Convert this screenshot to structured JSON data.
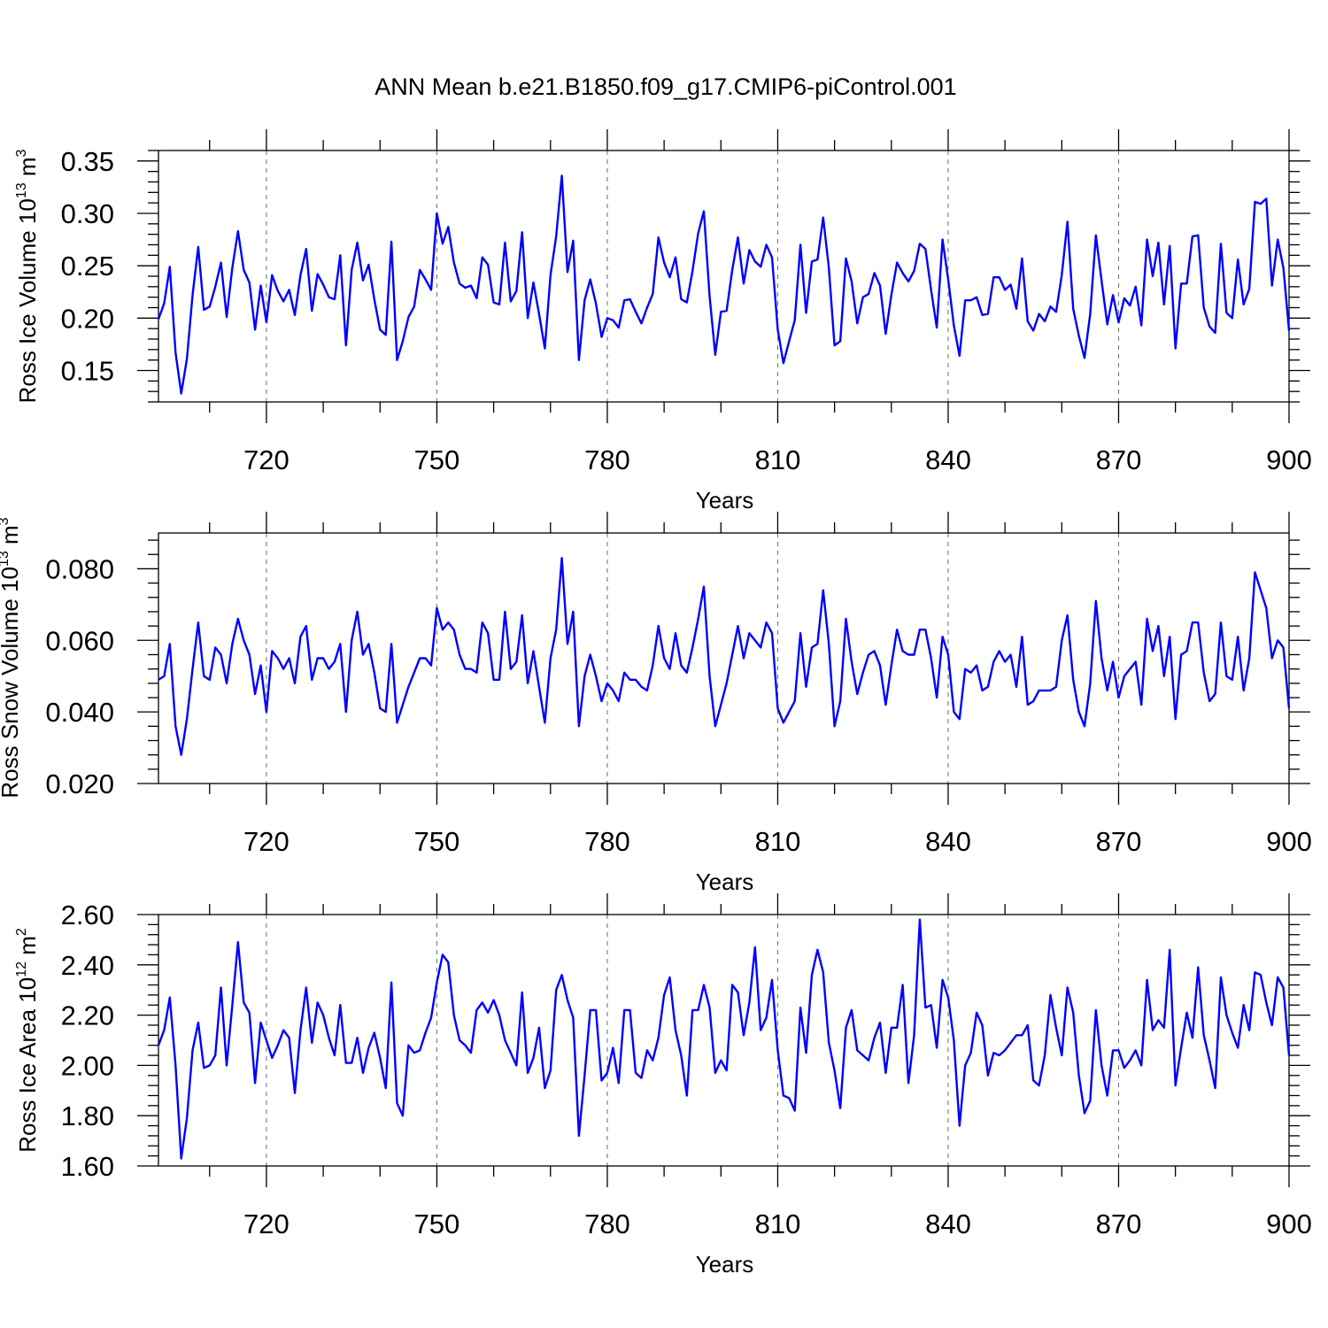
{
  "figure": {
    "title": "ANN Mean b.e21.B1850.f09_g17.CMIP6-piControl.001"
  },
  "chart_data": [
    {
      "type": "line",
      "ylabel_main": "Ross Ice Volume 10",
      "ylabel_exp": "13",
      "ylabel_unit": " m",
      "ylabel_unit_exp": "3",
      "xlabel": "Years",
      "xlim": [
        701,
        900
      ],
      "ylim": [
        0.12,
        0.36
      ],
      "xticks": [
        720,
        750,
        780,
        810,
        840,
        870,
        900
      ],
      "xtick_labels": [
        "720",
        "750",
        "780",
        "810",
        "840",
        "870",
        "900"
      ],
      "yticks": [
        0.15,
        0.2,
        0.25,
        0.3,
        0.35
      ],
      "ytick_labels": [
        "0.15",
        "0.20",
        "0.25",
        "0.30",
        "0.35"
      ],
      "grid": "vertical dashed at major x ticks",
      "line_color": "#0000ff",
      "series": [
        {
          "x_start": 701,
          "values": [
            0.199,
            0.214,
            0.249,
            0.167,
            0.128,
            0.161,
            0.222,
            0.268,
            0.208,
            0.211,
            0.23,
            0.253,
            0.201,
            0.248,
            0.283,
            0.246,
            0.234,
            0.189,
            0.231,
            0.196,
            0.241,
            0.226,
            0.216,
            0.227,
            0.203,
            0.241,
            0.266,
            0.207,
            0.242,
            0.232,
            0.22,
            0.218,
            0.26,
            0.174,
            0.246,
            0.272,
            0.236,
            0.251,
            0.218,
            0.189,
            0.184,
            0.273,
            0.16,
            0.178,
            0.201,
            0.211,
            0.246,
            0.237,
            0.227,
            0.3,
            0.271,
            0.287,
            0.253,
            0.233,
            0.229,
            0.231,
            0.219,
            0.258,
            0.251,
            0.215,
            0.213,
            0.272,
            0.216,
            0.226,
            0.282,
            0.2,
            0.234,
            0.204,
            0.171,
            0.241,
            0.278,
            0.336,
            0.244,
            0.274,
            0.16,
            0.217,
            0.237,
            0.214,
            0.182,
            0.2,
            0.198,
            0.191,
            0.217,
            0.218,
            0.206,
            0.195,
            0.21,
            0.223,
            0.277,
            0.253,
            0.239,
            0.258,
            0.218,
            0.215,
            0.245,
            0.281,
            0.302,
            0.221,
            0.165,
            0.206,
            0.207,
            0.246,
            0.277,
            0.233,
            0.265,
            0.254,
            0.249,
            0.27,
            0.258,
            0.189,
            0.157,
            0.178,
            0.198,
            0.27,
            0.205,
            0.254,
            0.256,
            0.296,
            0.248,
            0.174,
            0.178,
            0.257,
            0.235,
            0.195,
            0.22,
            0.223,
            0.243,
            0.231,
            0.185,
            0.222,
            0.253,
            0.243,
            0.235,
            0.245,
            0.271,
            0.266,
            0.227,
            0.191,
            0.275,
            0.237,
            0.193,
            0.164,
            0.217,
            0.217,
            0.22,
            0.203,
            0.204,
            0.239,
            0.239,
            0.227,
            0.232,
            0.209,
            0.257,
            0.197,
            0.188,
            0.204,
            0.197,
            0.211,
            0.206,
            0.241,
            0.292,
            0.209,
            0.183,
            0.162,
            0.204,
            0.279,
            0.236,
            0.194,
            0.222,
            0.196,
            0.219,
            0.212,
            0.23,
            0.193,
            0.275,
            0.24,
            0.272,
            0.213,
            0.269,
            0.171,
            0.233,
            0.233,
            0.278,
            0.279,
            0.21,
            0.192,
            0.186,
            0.271,
            0.205,
            0.2,
            0.256,
            0.213,
            0.228,
            0.311,
            0.309,
            0.314,
            0.231,
            0.275,
            0.248,
            0.188
          ]
        }
      ]
    },
    {
      "type": "line",
      "ylabel_main": "Ross Snow Volume 10",
      "ylabel_exp": "13",
      "ylabel_unit": " m",
      "ylabel_unit_exp": "3",
      "xlabel": "Years",
      "xlim": [
        701,
        900
      ],
      "ylim": [
        0.02,
        0.09
      ],
      "xticks": [
        720,
        750,
        780,
        810,
        840,
        870,
        900
      ],
      "xtick_labels": [
        "720",
        "750",
        "780",
        "810",
        "840",
        "870",
        "900"
      ],
      "yticks": [
        0.02,
        0.04,
        0.06,
        0.08
      ],
      "ytick_labels": [
        "0.020",
        "0.040",
        "0.060",
        "0.080"
      ],
      "grid": "vertical dashed at major x ticks",
      "line_color": "#0000ff",
      "series": [
        {
          "x_start": 701,
          "values": [
            0.049,
            0.05,
            0.059,
            0.036,
            0.028,
            0.038,
            0.052,
            0.065,
            0.05,
            0.049,
            0.058,
            0.056,
            0.048,
            0.059,
            0.066,
            0.06,
            0.056,
            0.045,
            0.053,
            0.04,
            0.057,
            0.055,
            0.052,
            0.055,
            0.048,
            0.061,
            0.064,
            0.049,
            0.055,
            0.055,
            0.052,
            0.054,
            0.059,
            0.04,
            0.06,
            0.068,
            0.056,
            0.059,
            0.051,
            0.041,
            0.04,
            0.059,
            0.037,
            0.042,
            0.047,
            0.051,
            0.055,
            0.055,
            0.053,
            0.069,
            0.063,
            0.065,
            0.063,
            0.056,
            0.052,
            0.052,
            0.051,
            0.065,
            0.062,
            0.049,
            0.049,
            0.068,
            0.052,
            0.054,
            0.067,
            0.048,
            0.057,
            0.047,
            0.037,
            0.055,
            0.063,
            0.083,
            0.059,
            0.068,
            0.036,
            0.05,
            0.056,
            0.05,
            0.043,
            0.048,
            0.046,
            0.043,
            0.051,
            0.049,
            0.049,
            0.047,
            0.046,
            0.053,
            0.064,
            0.055,
            0.052,
            0.062,
            0.053,
            0.051,
            0.058,
            0.066,
            0.075,
            0.05,
            0.036,
            0.042,
            0.048,
            0.056,
            0.064,
            0.055,
            0.062,
            0.06,
            0.058,
            0.065,
            0.062,
            0.041,
            0.037,
            0.04,
            0.043,
            0.062,
            0.047,
            0.058,
            0.059,
            0.074,
            0.059,
            0.036,
            0.043,
            0.066,
            0.054,
            0.045,
            0.051,
            0.056,
            0.057,
            0.053,
            0.042,
            0.053,
            0.063,
            0.057,
            0.056,
            0.056,
            0.063,
            0.063,
            0.055,
            0.044,
            0.061,
            0.056,
            0.04,
            0.038,
            0.052,
            0.051,
            0.053,
            0.046,
            0.047,
            0.054,
            0.057,
            0.054,
            0.056,
            0.047,
            0.061,
            0.042,
            0.043,
            0.046,
            0.046,
            0.046,
            0.047,
            0.06,
            0.067,
            0.049,
            0.04,
            0.036,
            0.048,
            0.071,
            0.055,
            0.046,
            0.054,
            0.044,
            0.05,
            0.052,
            0.054,
            0.042,
            0.066,
            0.057,
            0.064,
            0.05,
            0.061,
            0.038,
            0.056,
            0.057,
            0.065,
            0.065,
            0.051,
            0.043,
            0.045,
            0.065,
            0.05,
            0.049,
            0.061,
            0.046,
            0.055,
            0.079,
            0.074,
            0.069,
            0.055,
            0.06,
            0.058,
            0.041
          ]
        }
      ]
    },
    {
      "type": "line",
      "ylabel_main": "Ross Ice Area 10",
      "ylabel_exp": "12",
      "ylabel_unit": " m",
      "ylabel_unit_exp": "2",
      "xlabel": "Years",
      "xlim": [
        701,
        900
      ],
      "ylim": [
        1.6,
        2.6
      ],
      "xticks": [
        720,
        750,
        780,
        810,
        840,
        870,
        900
      ],
      "xtick_labels": [
        "720",
        "750",
        "780",
        "810",
        "840",
        "870",
        "900"
      ],
      "yticks": [
        1.6,
        1.8,
        2.0,
        2.2,
        2.4,
        2.6
      ],
      "ytick_labels": [
        "1.60",
        "1.80",
        "2.00",
        "2.20",
        "2.40",
        "2.60"
      ],
      "grid": "vertical dashed at major x ticks",
      "line_color": "#0000ff",
      "series": [
        {
          "x_start": 701,
          "values": [
            2.08,
            2.14,
            2.27,
            2.0,
            1.63,
            1.79,
            2.06,
            2.17,
            1.99,
            2.0,
            2.04,
            2.31,
            2.0,
            2.24,
            2.49,
            2.25,
            2.21,
            1.93,
            2.17,
            2.1,
            2.03,
            2.08,
            2.14,
            2.11,
            1.89,
            2.14,
            2.31,
            2.09,
            2.25,
            2.2,
            2.11,
            2.04,
            2.24,
            2.01,
            2.01,
            2.11,
            1.97,
            2.07,
            2.13,
            2.03,
            1.91,
            2.33,
            1.85,
            1.8,
            2.08,
            2.05,
            2.06,
            2.13,
            2.19,
            2.33,
            2.44,
            2.41,
            2.2,
            2.1,
            2.08,
            2.05,
            2.22,
            2.25,
            2.21,
            2.26,
            2.2,
            2.1,
            2.05,
            2.0,
            2.29,
            1.97,
            2.03,
            2.15,
            1.91,
            1.98,
            2.3,
            2.36,
            2.26,
            2.19,
            1.72,
            1.96,
            2.22,
            2.22,
            1.94,
            1.97,
            2.07,
            1.93,
            2.22,
            2.22,
            1.97,
            1.95,
            2.06,
            2.02,
            2.11,
            2.28,
            2.35,
            2.14,
            2.04,
            1.88,
            2.22,
            2.22,
            2.32,
            2.23,
            1.97,
            2.02,
            1.98,
            2.32,
            2.29,
            2.12,
            2.25,
            2.47,
            2.14,
            2.19,
            2.34,
            2.06,
            1.88,
            1.87,
            1.82,
            2.23,
            2.05,
            2.36,
            2.46,
            2.37,
            2.09,
            1.98,
            1.83,
            2.15,
            2.22,
            2.06,
            2.04,
            2.02,
            2.11,
            2.17,
            1.97,
            2.15,
            2.15,
            2.32,
            1.93,
            2.12,
            2.58,
            2.23,
            2.24,
            2.07,
            2.34,
            2.27,
            2.1,
            1.76,
            2.0,
            2.05,
            2.21,
            2.16,
            1.96,
            2.05,
            2.04,
            2.06,
            2.09,
            2.12,
            2.12,
            2.16,
            1.94,
            1.92,
            2.04,
            2.28,
            2.15,
            2.04,
            2.31,
            2.21,
            1.96,
            1.81,
            1.86,
            2.22,
            2.0,
            1.88,
            2.06,
            2.06,
            1.99,
            2.02,
            2.06,
            2.0,
            2.34,
            2.14,
            2.18,
            2.15,
            2.46,
            1.92,
            2.07,
            2.21,
            2.11,
            2.39,
            2.12,
            2.02,
            1.91,
            2.35,
            2.2,
            2.13,
            2.07,
            2.24,
            2.14,
            2.37,
            2.36,
            2.25,
            2.16,
            2.35,
            2.31,
            2.04
          ]
        }
      ]
    }
  ]
}
